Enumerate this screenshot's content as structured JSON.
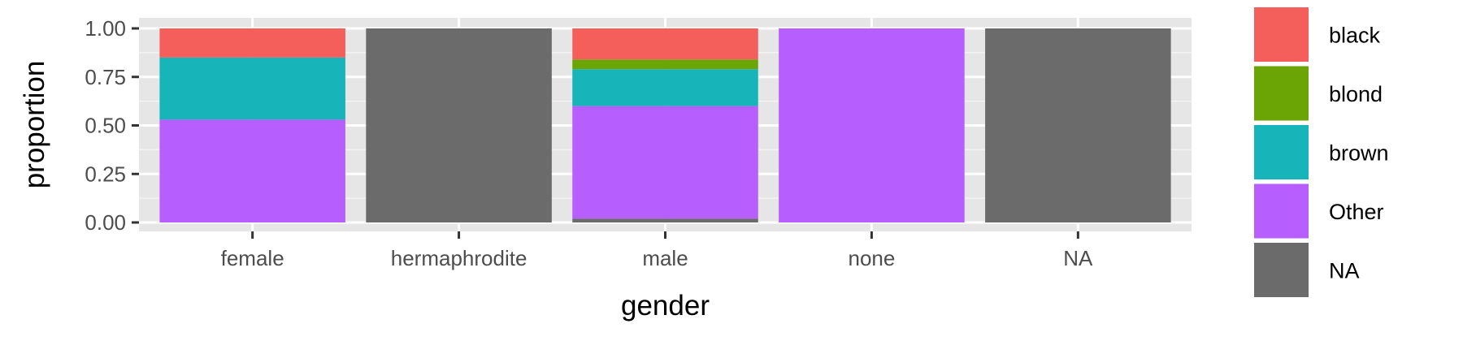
{
  "chart_data": {
    "type": "bar",
    "stacked": true,
    "xlabel": "gender",
    "ylabel": "proportion",
    "ylim": [
      0,
      1
    ],
    "yticks": [
      "0.00",
      "0.25",
      "0.50",
      "0.75",
      "1.00"
    ],
    "ytick_values": [
      0,
      0.25,
      0.5,
      0.75,
      1
    ],
    "grid": true,
    "legend_position": "right",
    "categories": [
      "female",
      "hermaphrodite",
      "male",
      "none",
      "NA"
    ],
    "series": [
      {
        "name": "NA",
        "color": "#6b6b6b",
        "values": [
          0,
          1,
          0.02,
          0,
          1
        ]
      },
      {
        "name": "Other",
        "color": "#b75eff",
        "values": [
          0.53,
          0,
          0.58,
          1,
          0
        ]
      },
      {
        "name": "brown",
        "color": "#17b4b9",
        "values": [
          0.32,
          0,
          0.19,
          0,
          0
        ]
      },
      {
        "name": "blond",
        "color": "#6aa505",
        "values": [
          0,
          0,
          0.05,
          0,
          0
        ]
      },
      {
        "name": "black",
        "color": "#f45f5c",
        "values": [
          0.15,
          0,
          0.16,
          0,
          0
        ]
      }
    ],
    "legend_order": [
      "black",
      "blond",
      "brown",
      "Other",
      "NA"
    ]
  }
}
